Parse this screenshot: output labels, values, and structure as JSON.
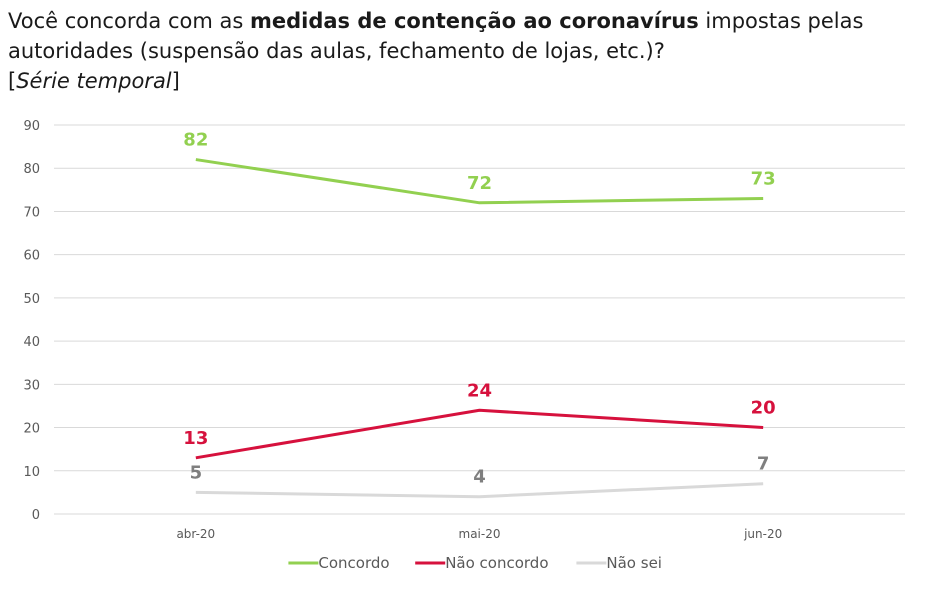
{
  "title": {
    "part1": "Você concorda com as ",
    "bold": "medidas de contenção ao coronavírus",
    "part2": " impostas pelas autoridades (suspensão das aulas, fechamento de lojas, etc.)?",
    "subtitle_open": "[",
    "subtitle_italic": "Série temporal",
    "subtitle_close": "]"
  },
  "chart_data": {
    "type": "line",
    "title": "Você concorda com as medidas de contenção ao coronavírus impostas pelas autoridades (suspensão das aulas, fechamento de lojas, etc.)? [Série temporal]",
    "categories": [
      "abr-20",
      "mai-20",
      "jun-20"
    ],
    "series": [
      {
        "name": "Concordo",
        "color": "#92d050",
        "label_color": "#92d050",
        "values": [
          82,
          72,
          73
        ]
      },
      {
        "name": "Não concordo",
        "color": "#d6113d",
        "label_color": "#d6113d",
        "values": [
          13,
          24,
          20
        ]
      },
      {
        "name": "Não sei",
        "color": "#d9d9d9",
        "label_color": "#7f7f7f",
        "values": [
          5,
          4,
          7
        ]
      }
    ],
    "xlabel": "",
    "ylabel": "",
    "ylim": [
      0,
      90
    ],
    "yticks": [
      0,
      10,
      20,
      30,
      40,
      50,
      60,
      70,
      80,
      90
    ],
    "grid": true,
    "legend": "bottom"
  }
}
